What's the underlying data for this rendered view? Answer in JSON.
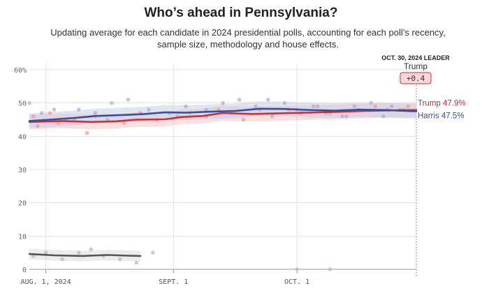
{
  "header": {
    "title": "Who’s ahead in Pennsylvania?",
    "subtitle": "Updating average for each candidate in 2024 presidential polls, accounting for each poll’s recency, sample size, methodology and house effects."
  },
  "leader_box": {
    "date_label": "OCT. 30, 2024 LEADER",
    "name": "Trump",
    "margin": "+0.4"
  },
  "chart_data": {
    "type": "line",
    "x_start": "2024-07-28",
    "x_end": "2024-10-30",
    "ylim": [
      0,
      60
    ],
    "y_ticks": [
      {
        "value": 0,
        "label": "0"
      },
      {
        "value": 10,
        "label": "10"
      },
      {
        "value": 20,
        "label": "20"
      },
      {
        "value": 30,
        "label": "30"
      },
      {
        "value": 40,
        "label": "40"
      },
      {
        "value": 50,
        "label": "50"
      },
      {
        "value": 60,
        "label": "60%"
      }
    ],
    "x_ticks": [
      {
        "date": "2024-08-01",
        "label": "AUG. 1, 2024"
      },
      {
        "date": "2024-09-01",
        "label": "SEPT. 1"
      },
      {
        "date": "2024-10-01",
        "label": "OCT. 1"
      }
    ],
    "grid": true,
    "series": [
      {
        "name": "Trump",
        "end_label": "Trump 47.9%",
        "color": "#c9303a",
        "band_color": "#f4c6c8",
        "dot_color": "#e89aa0",
        "points": [
          [
            "2024-07-28",
            44.3
          ],
          [
            "2024-08-05",
            44.6
          ],
          [
            "2024-08-12",
            44.3
          ],
          [
            "2024-08-18",
            44.5
          ],
          [
            "2024-08-23",
            45.0
          ],
          [
            "2024-08-30",
            45.1
          ],
          [
            "2024-09-03",
            45.8
          ],
          [
            "2024-09-08",
            46.1
          ],
          [
            "2024-09-13",
            47.0
          ],
          [
            "2024-09-20",
            46.7
          ],
          [
            "2024-09-27",
            46.9
          ],
          [
            "2024-10-03",
            47.1
          ],
          [
            "2024-10-10",
            47.3
          ],
          [
            "2024-10-17",
            47.6
          ],
          [
            "2024-10-24",
            47.8
          ],
          [
            "2024-10-30",
            47.9
          ]
        ],
        "polls": [
          [
            "2024-07-29",
            46
          ],
          [
            "2024-07-30",
            43
          ],
          [
            "2024-08-02",
            47
          ],
          [
            "2024-08-04",
            44
          ],
          [
            "2024-08-08",
            45
          ],
          [
            "2024-08-11",
            41
          ],
          [
            "2024-08-13",
            46
          ],
          [
            "2024-08-16",
            45
          ],
          [
            "2024-08-20",
            44
          ],
          [
            "2024-08-24",
            47
          ],
          [
            "2024-08-28",
            45
          ],
          [
            "2024-09-02",
            46
          ],
          [
            "2024-09-05",
            47
          ],
          [
            "2024-09-09",
            46
          ],
          [
            "2024-09-12",
            48
          ],
          [
            "2024-09-15",
            47
          ],
          [
            "2024-09-18",
            45
          ],
          [
            "2024-09-22",
            48
          ],
          [
            "2024-09-25",
            46
          ],
          [
            "2024-09-29",
            48
          ],
          [
            "2024-10-02",
            47
          ],
          [
            "2024-10-06",
            49
          ],
          [
            "2024-10-09",
            47
          ],
          [
            "2024-10-13",
            46
          ],
          [
            "2024-10-16",
            48
          ],
          [
            "2024-10-20",
            49
          ],
          [
            "2024-10-23",
            48
          ],
          [
            "2024-10-26",
            48
          ],
          [
            "2024-10-28",
            49
          ]
        ]
      },
      {
        "name": "Harris",
        "end_label": "Harris 47.5%",
        "color": "#3a4f9a",
        "band_color": "#c9cde6",
        "dot_color": "#a4acd6",
        "points": [
          [
            "2024-07-28",
            44.6
          ],
          [
            "2024-08-02",
            45.0
          ],
          [
            "2024-08-08",
            45.5
          ],
          [
            "2024-08-13",
            46.1
          ],
          [
            "2024-08-20",
            46.4
          ],
          [
            "2024-08-25",
            46.7
          ],
          [
            "2024-08-30",
            47.2
          ],
          [
            "2024-09-04",
            47.1
          ],
          [
            "2024-09-10",
            47.4
          ],
          [
            "2024-09-16",
            47.6
          ],
          [
            "2024-09-22",
            48.3
          ],
          [
            "2024-09-28",
            48.2
          ],
          [
            "2024-10-04",
            47.9
          ],
          [
            "2024-10-10",
            47.7
          ],
          [
            "2024-10-16",
            48.0
          ],
          [
            "2024-10-22",
            47.9
          ],
          [
            "2024-10-30",
            47.5
          ]
        ],
        "polls": [
          [
            "2024-07-28",
            50
          ],
          [
            "2024-07-31",
            47
          ],
          [
            "2024-08-03",
            48
          ],
          [
            "2024-08-06",
            45
          ],
          [
            "2024-08-09",
            48
          ],
          [
            "2024-08-13",
            47
          ],
          [
            "2024-08-17",
            50
          ],
          [
            "2024-08-21",
            51
          ],
          [
            "2024-08-26",
            48
          ],
          [
            "2024-08-31",
            47
          ],
          [
            "2024-09-04",
            49
          ],
          [
            "2024-09-09",
            48
          ],
          [
            "2024-09-13",
            50
          ],
          [
            "2024-09-17",
            51
          ],
          [
            "2024-09-21",
            49
          ],
          [
            "2024-09-24",
            51
          ],
          [
            "2024-09-28",
            50
          ],
          [
            "2024-10-01",
            48
          ],
          [
            "2024-10-05",
            49
          ],
          [
            "2024-10-08",
            47
          ],
          [
            "2024-10-12",
            46
          ],
          [
            "2024-10-15",
            49
          ],
          [
            "2024-10-19",
            50
          ],
          [
            "2024-10-22",
            46
          ],
          [
            "2024-10-24",
            49
          ],
          [
            "2024-10-27",
            48
          ]
        ]
      },
      {
        "color": "#555555",
        "band_color": "#dcdcdc",
        "dot_color": "#b8b8b8",
        "points": [
          [
            "2024-07-28",
            4.6
          ],
          [
            "2024-08-03",
            4.2
          ],
          [
            "2024-08-10",
            4.0
          ],
          [
            "2024-08-16",
            4.3
          ],
          [
            "2024-08-21",
            4.1
          ],
          [
            "2024-08-24",
            4.0
          ]
        ],
        "polls": [
          [
            "2024-07-29",
            4
          ],
          [
            "2024-08-01",
            5
          ],
          [
            "2024-08-05",
            3
          ],
          [
            "2024-08-09",
            5
          ],
          [
            "2024-08-12",
            6
          ],
          [
            "2024-08-15",
            4
          ],
          [
            "2024-08-19",
            3
          ],
          [
            "2024-08-23",
            2
          ],
          [
            "2024-08-27",
            5
          ],
          [
            "2024-10-01",
            0
          ],
          [
            "2024-10-09",
            0
          ]
        ]
      }
    ]
  }
}
